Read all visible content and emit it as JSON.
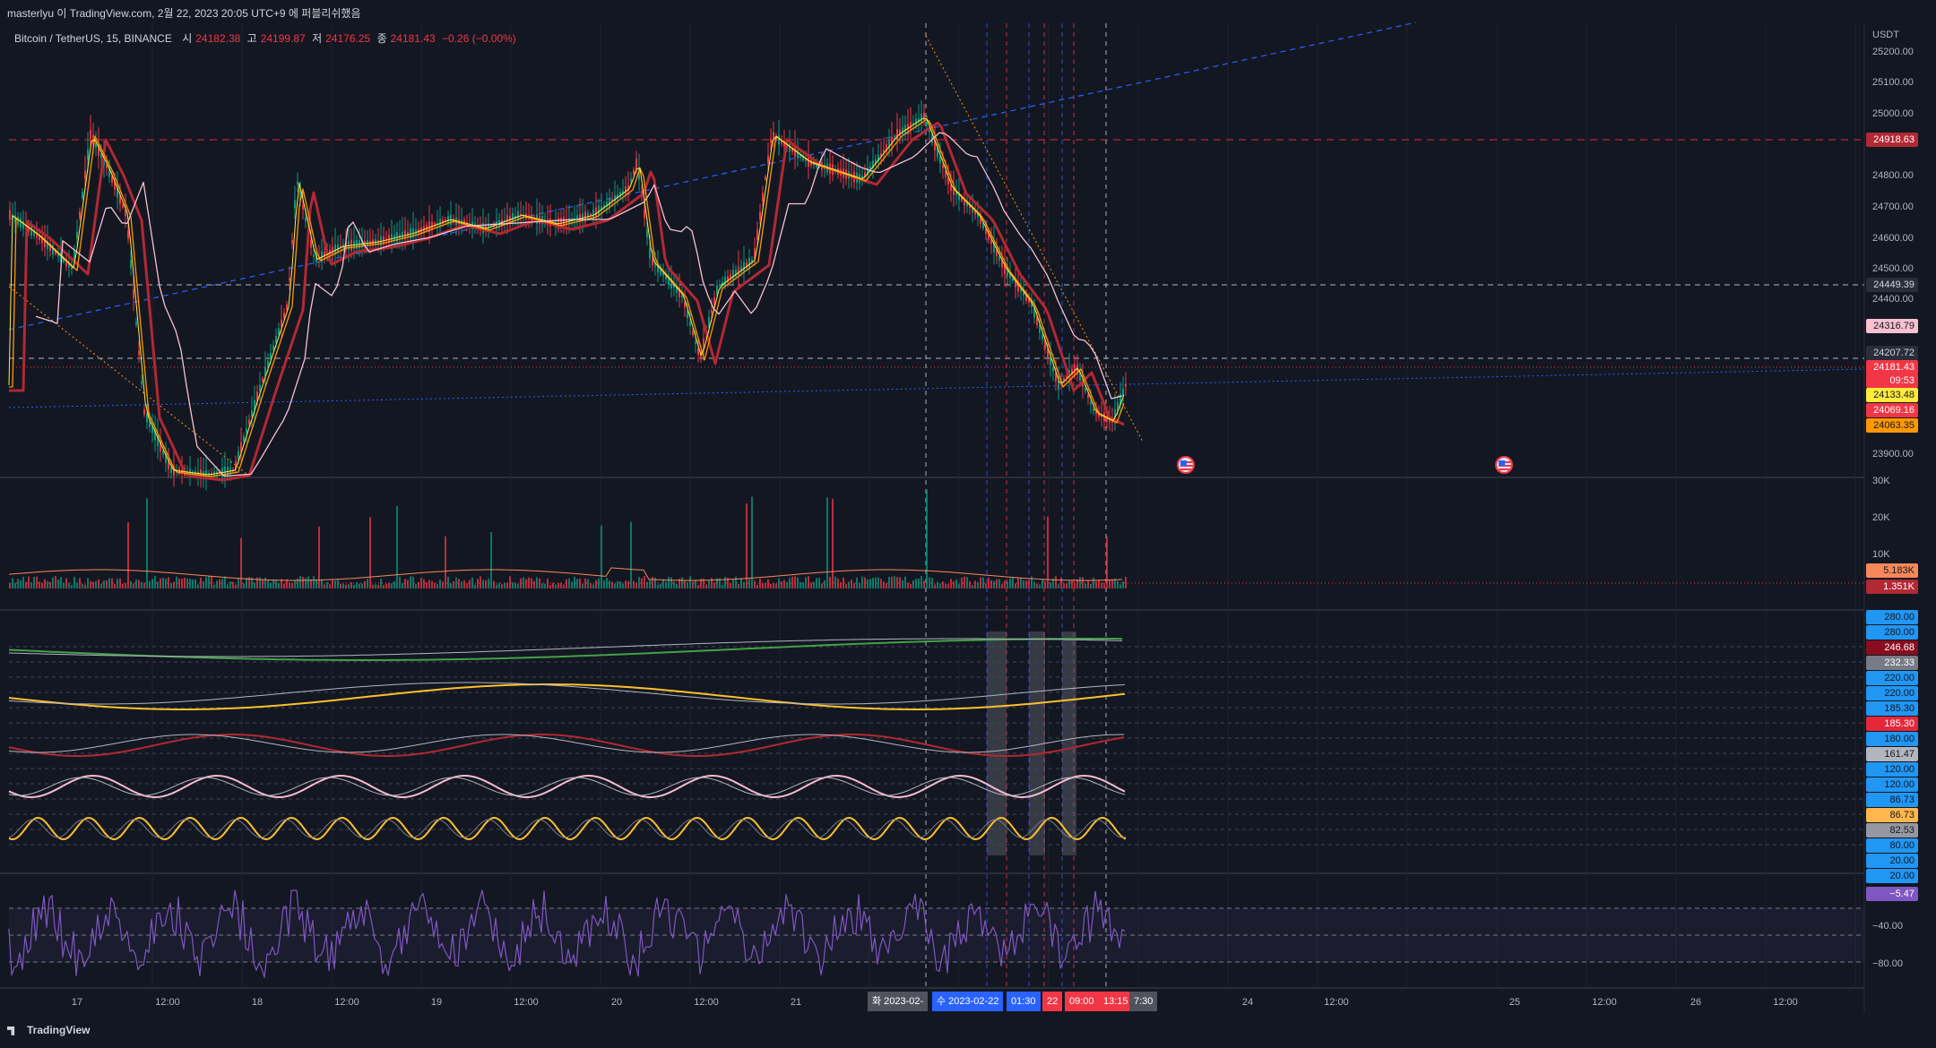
{
  "header": {
    "published": "masterlyu 이 TradingView.com, 2월 22, 2023 20:05 UTC+9 에 퍼블리쉬했음"
  },
  "symbol": {
    "name": "Bitcoin / TetherUS, 15, BINANCE",
    "open_label": "시",
    "open": "24182.38",
    "high_label": "고",
    "high": "24199.87",
    "low_label": "저",
    "low": "24176.25",
    "close_label": "종",
    "close": "24181.43",
    "change": "−0.26 (−0.00%)"
  },
  "price_axis": {
    "currency": "USDT",
    "ticks": [
      "25200.00",
      "25100.00",
      "25000.00",
      "24800.00",
      "24700.00",
      "24600.00",
      "24500.00",
      "24400.00",
      "23900.00"
    ],
    "labels": [
      {
        "text": "24918.63",
        "bg": "#b22833",
        "fg": "#ffffff"
      },
      {
        "text": "24449.39",
        "bg": "#2a2e39",
        "fg": "#d1d4dc"
      },
      {
        "text": "24316.79",
        "bg": "#f7c1d0",
        "fg": "#131722"
      },
      {
        "text": "24207.72",
        "bg": "#2a2e39",
        "fg": "#d1d4dc"
      },
      {
        "text": "24181.43",
        "bg": "#f23645",
        "fg": "#ffffff"
      },
      {
        "text": "09:53",
        "bg": "#f23645",
        "fg": "#ffffff"
      },
      {
        "text": "24133.48",
        "bg": "#ffeb3b",
        "fg": "#131722"
      },
      {
        "text": "24069.16",
        "bg": "#f23645",
        "fg": "#ffffff"
      },
      {
        "text": "24063.35",
        "bg": "#ff9800",
        "fg": "#131722"
      }
    ]
  },
  "volume_axis": {
    "ticks": [
      "30K",
      "20K",
      "10K"
    ],
    "labels": [
      {
        "text": "5.183K",
        "bg": "#f7885a",
        "fg": "#131722"
      },
      {
        "text": "1.351K",
        "bg": "#b22833",
        "fg": "#ffffff"
      }
    ]
  },
  "indicator_axis": {
    "labels": [
      {
        "text": "280.00",
        "bg": "#2196f3",
        "fg": "#131722"
      },
      {
        "text": "280.00",
        "bg": "#2196f3",
        "fg": "#131722"
      },
      {
        "text": "246.68",
        "bg": "#880e1f",
        "fg": "#ffffff"
      },
      {
        "text": "232.33",
        "bg": "#787b86",
        "fg": "#ffffff"
      },
      {
        "text": "220.00",
        "bg": "#2196f3",
        "fg": "#131722"
      },
      {
        "text": "220.00",
        "bg": "#2196f3",
        "fg": "#131722"
      },
      {
        "text": "185.30",
        "bg": "#2196f3",
        "fg": "#131722"
      },
      {
        "text": "185.30",
        "bg": "#e5273a",
        "fg": "#ffffff"
      },
      {
        "text": "180.00",
        "bg": "#2196f3",
        "fg": "#131722"
      },
      {
        "text": "161.47",
        "bg": "#b2b5be",
        "fg": "#131722"
      },
      {
        "text": "120.00",
        "bg": "#2196f3",
        "fg": "#131722"
      },
      {
        "text": "120.00",
        "bg": "#2196f3",
        "fg": "#131722"
      },
      {
        "text": "86.73",
        "bg": "#2196f3",
        "fg": "#131722"
      },
      {
        "text": "86.73",
        "bg": "#ffb74d",
        "fg": "#131722"
      },
      {
        "text": "82.53",
        "bg": "#9598a1",
        "fg": "#131722"
      },
      {
        "text": "80.00",
        "bg": "#2196f3",
        "fg": "#131722"
      },
      {
        "text": "20.00",
        "bg": "#2196f3",
        "fg": "#131722"
      },
      {
        "text": "20.00",
        "bg": "#2196f3",
        "fg": "#131722"
      }
    ]
  },
  "osc_axis": {
    "ticks": [
      "−40.00",
      "−80.00"
    ],
    "labels": [
      {
        "text": "−5.47",
        "bg": "#7e57c2",
        "fg": "#ffffff"
      }
    ]
  },
  "time_axis": {
    "ticks": [
      {
        "text": "17",
        "slot": 0
      },
      {
        "text": "12:00",
        "slot": 1
      },
      {
        "text": "18",
        "slot": 2
      },
      {
        "text": "12:00",
        "slot": 3
      },
      {
        "text": "19",
        "slot": 4
      },
      {
        "text": "12:00",
        "slot": 5
      },
      {
        "text": "20",
        "slot": 6
      },
      {
        "text": "12:00",
        "slot": 7
      },
      {
        "text": "21",
        "slot": 8
      },
      {
        "text": "12:00",
        "slot": 9
      },
      {
        "text": "24",
        "slot": 10
      },
      {
        "text": "12:00",
        "slot": 11
      },
      {
        "text": "25",
        "slot": 12
      },
      {
        "text": "12:00",
        "slot": 13
      },
      {
        "text": "26",
        "slot": 14
      },
      {
        "text": "12:00",
        "slot": 15
      }
    ],
    "badges": [
      {
        "text": "화 2023-02-",
        "bg": "#50535e"
      },
      {
        "text": "수 2023-02-22",
        "bg": "#2962ff"
      },
      {
        "text": "01:30",
        "bg": "#2962ff"
      },
      {
        "text": "22",
        "bg": "#f23645"
      },
      {
        "text": "09:00",
        "bg": "#f23645"
      },
      {
        "text": "13:15",
        "bg": "#f23645"
      },
      {
        "text": "7:30",
        "bg": "#50535e"
      }
    ]
  },
  "footer": {
    "brand": "TradingView"
  },
  "colors": {
    "bg": "#131722",
    "up": "#089981",
    "down": "#f23645",
    "ma_red": "#b22833",
    "ma_slow": "#f7c1d0",
    "ma_yellow": "#ffeb3b",
    "ma_orange": "#ff9800",
    "trend_blue": "#2962ff"
  }
}
